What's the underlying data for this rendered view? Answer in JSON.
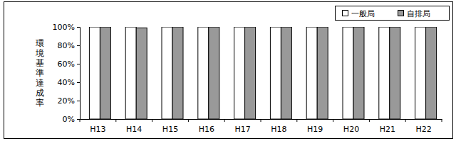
{
  "chart_data": {
    "type": "bar",
    "y_label": "環境基準達成率",
    "categories": [
      "H13",
      "H14",
      "H15",
      "H16",
      "H17",
      "H18",
      "H19",
      "H20",
      "H21",
      "H22"
    ],
    "series": [
      {
        "name": "一般局",
        "color": "#ffffff",
        "values": [
          100,
          100,
          100,
          100,
          100,
          100,
          100,
          100,
          100,
          100
        ]
      },
      {
        "name": "自排局",
        "color": "#999999",
        "values": [
          100,
          99,
          100,
          100,
          100,
          100,
          100,
          100,
          100,
          100
        ]
      }
    ],
    "ylim": [
      0,
      100
    ],
    "yticks": [
      {
        "value": 0,
        "label": "0%"
      },
      {
        "value": 20,
        "label": "20%"
      },
      {
        "value": 40,
        "label": "40%"
      },
      {
        "value": 60,
        "label": "60%"
      },
      {
        "value": 80,
        "label": "80%"
      },
      {
        "value": 100,
        "label": "100%"
      }
    ],
    "grid": false,
    "legend": "top-right"
  }
}
